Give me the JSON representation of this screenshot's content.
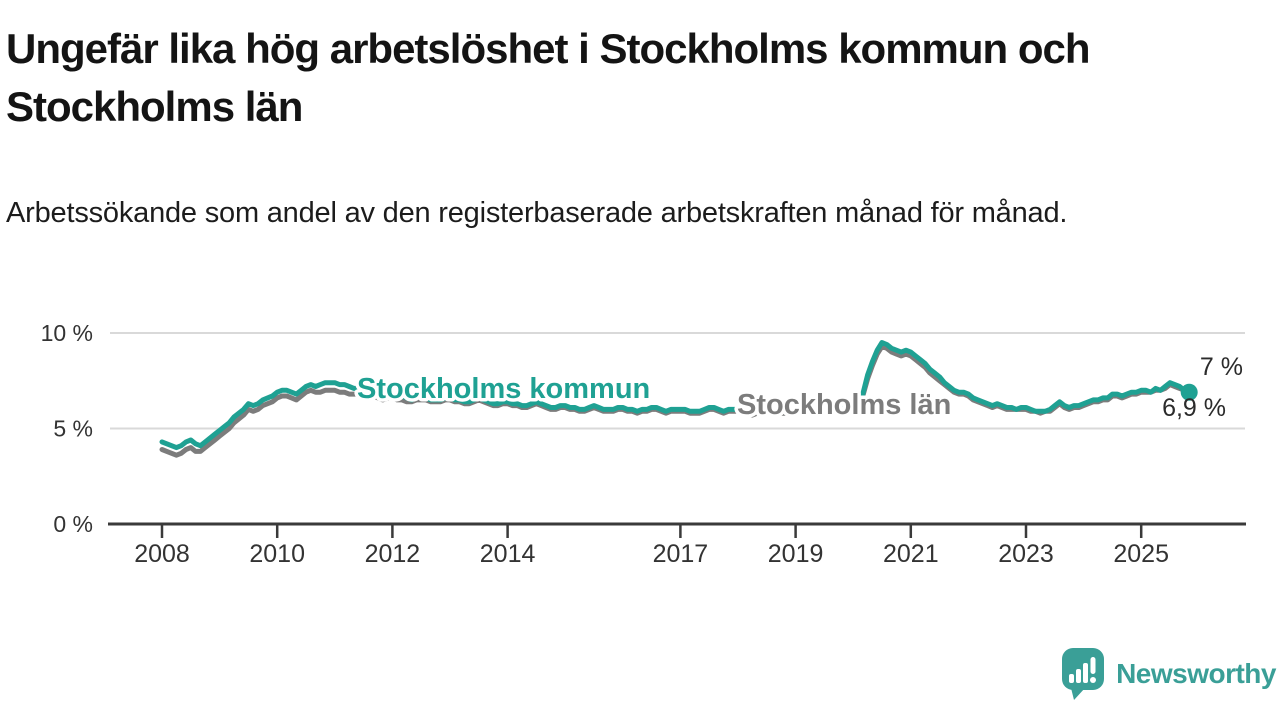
{
  "header": {
    "title": "Ungefär lika hög arbetslöshet i Stockholms kommun och Stockholms län",
    "subtitle": "Arbetssökande som andel av den registerbaserade arbetskraften månad för månad."
  },
  "colors": {
    "kommun_teal": "#1fa193",
    "lan_gray": "#7c7c7c",
    "grid": "#d9d9d9",
    "axis": "#3a3a3a",
    "tick_text": "#333333",
    "end_label_text": "#2b2b2b",
    "brand_teal": "#3a9f97"
  },
  "chart_data": {
    "type": "line",
    "unit": "%",
    "frequency": "monthly",
    "start": {
      "year": 2008,
      "month": 1
    },
    "end": {
      "year": 2025,
      "month": 11
    },
    "ylim": [
      0,
      10.5
    ],
    "grid": "horizontal-only",
    "legend_position": "inline-labels",
    "yticks": [
      {
        "value": 0,
        "label": "0 %"
      },
      {
        "value": 5,
        "label": "5 %"
      },
      {
        "value": 10,
        "label": "10 %"
      }
    ],
    "xticks": [
      {
        "year": 2008,
        "label": "2008"
      },
      {
        "year": 2010,
        "label": "2010"
      },
      {
        "year": 2012,
        "label": "2012"
      },
      {
        "year": 2014,
        "label": "2014"
      },
      {
        "year": 2017,
        "label": "2017"
      },
      {
        "year": 2019,
        "label": "2019"
      },
      {
        "year": 2021,
        "label": "2021"
      },
      {
        "year": 2023,
        "label": "2023"
      },
      {
        "year": 2025,
        "label": "2025"
      }
    ],
    "series": [
      {
        "name": "Stockholms kommun",
        "color": "#1fa193",
        "end_label": "6,9 %",
        "end_marker": true,
        "values": [
          4.3,
          4.2,
          4.1,
          4.0,
          4.1,
          4.3,
          4.4,
          4.2,
          4.1,
          4.3,
          4.5,
          4.7,
          4.9,
          5.1,
          5.3,
          5.6,
          5.8,
          6.0,
          6.3,
          6.2,
          6.3,
          6.5,
          6.6,
          6.7,
          6.9,
          7.0,
          7.0,
          6.9,
          6.8,
          7.0,
          7.2,
          7.3,
          7.2,
          7.3,
          7.4,
          7.4,
          7.4,
          7.3,
          7.3,
          7.2,
          7.1,
          7.1,
          7.2,
          7.1,
          7.0,
          6.9,
          6.8,
          6.9,
          6.8,
          6.7,
          6.7,
          6.6,
          6.5,
          6.6,
          6.7,
          6.6,
          6.5,
          6.5,
          6.5,
          6.6,
          6.6,
          6.5,
          6.5,
          6.4,
          6.4,
          6.5,
          6.6,
          6.5,
          6.4,
          6.3,
          6.3,
          6.4,
          6.4,
          6.3,
          6.3,
          6.2,
          6.2,
          6.3,
          6.4,
          6.3,
          6.2,
          6.1,
          6.1,
          6.2,
          6.2,
          6.1,
          6.1,
          6.0,
          6.0,
          6.1,
          6.2,
          6.1,
          6.0,
          6.0,
          6.0,
          6.1,
          6.1,
          6.0,
          6.0,
          5.9,
          6.0,
          6.0,
          6.1,
          6.1,
          6.0,
          5.9,
          6.0,
          6.0,
          6.0,
          6.0,
          5.9,
          5.9,
          5.9,
          6.0,
          6.1,
          6.1,
          6.0,
          5.9,
          6.0,
          6.0,
          6.0,
          5.9,
          5.9,
          5.8,
          5.9,
          5.9,
          6.0,
          6.0,
          5.9,
          5.9,
          5.9,
          6.0,
          6.0,
          6.0,
          5.9,
          5.9,
          6.0,
          6.1,
          6.2,
          6.1,
          6.1,
          6.1,
          6.2,
          6.2,
          6.3,
          6.4,
          6.8,
          7.8,
          8.5,
          9.1,
          9.5,
          9.4,
          9.2,
          9.1,
          9.0,
          9.1,
          9.0,
          8.8,
          8.6,
          8.4,
          8.1,
          7.9,
          7.7,
          7.4,
          7.2,
          7.0,
          6.9,
          6.9,
          6.8,
          6.6,
          6.5,
          6.4,
          6.3,
          6.2,
          6.3,
          6.2,
          6.1,
          6.1,
          6.0,
          6.1,
          6.1,
          6.0,
          5.9,
          5.9,
          5.9,
          6.0,
          6.2,
          6.4,
          6.2,
          6.1,
          6.2,
          6.2,
          6.3,
          6.4,
          6.5,
          6.5,
          6.6,
          6.6,
          6.8,
          6.8,
          6.7,
          6.8,
          6.9,
          6.9,
          7.0,
          7.0,
          6.9,
          7.1,
          7.0,
          7.2,
          7.4,
          7.3,
          7.2,
          7.0,
          6.9
        ]
      },
      {
        "name": "Stockholms län",
        "color": "#7c7c7c",
        "end_label": "7 %",
        "end_marker": false,
        "values": [
          3.9,
          3.8,
          3.7,
          3.6,
          3.7,
          3.9,
          4.0,
          3.8,
          3.8,
          4.0,
          4.2,
          4.4,
          4.6,
          4.8,
          5.0,
          5.3,
          5.5,
          5.7,
          6.0,
          5.9,
          6.0,
          6.2,
          6.3,
          6.4,
          6.6,
          6.7,
          6.7,
          6.6,
          6.5,
          6.7,
          6.9,
          7.0,
          6.9,
          6.9,
          7.0,
          7.0,
          7.0,
          6.9,
          6.9,
          6.8,
          6.8,
          6.8,
          6.9,
          6.8,
          6.7,
          6.6,
          6.5,
          6.6,
          6.6,
          6.5,
          6.5,
          6.4,
          6.4,
          6.5,
          6.5,
          6.5,
          6.4,
          6.4,
          6.4,
          6.5,
          6.5,
          6.4,
          6.4,
          6.3,
          6.3,
          6.4,
          6.5,
          6.4,
          6.3,
          6.2,
          6.2,
          6.3,
          6.3,
          6.2,
          6.2,
          6.1,
          6.1,
          6.2,
          6.3,
          6.2,
          6.1,
          6.0,
          6.0,
          6.1,
          6.1,
          6.0,
          6.0,
          5.9,
          5.9,
          6.0,
          6.1,
          6.0,
          5.9,
          5.9,
          5.9,
          6.0,
          6.0,
          5.9,
          5.9,
          5.8,
          5.9,
          5.9,
          6.0,
          6.0,
          5.9,
          5.8,
          5.9,
          5.9,
          5.9,
          5.9,
          5.8,
          5.8,
          5.8,
          5.9,
          6.0,
          6.0,
          5.9,
          5.8,
          5.9,
          5.9,
          5.9,
          5.8,
          5.8,
          5.7,
          5.8,
          5.8,
          5.9,
          5.9,
          5.8,
          5.8,
          5.8,
          5.9,
          5.9,
          5.9,
          5.8,
          5.8,
          5.9,
          6.0,
          6.1,
          6.0,
          6.0,
          6.0,
          6.1,
          6.1,
          6.2,
          6.3,
          6.7,
          7.6,
          8.3,
          8.9,
          9.3,
          9.2,
          9.0,
          8.9,
          8.8,
          8.9,
          8.8,
          8.6,
          8.4,
          8.2,
          7.9,
          7.7,
          7.5,
          7.3,
          7.1,
          6.9,
          6.8,
          6.8,
          6.7,
          6.5,
          6.4,
          6.3,
          6.2,
          6.1,
          6.2,
          6.1,
          6.0,
          6.0,
          6.0,
          6.0,
          6.0,
          5.9,
          5.9,
          5.8,
          5.9,
          5.9,
          6.1,
          6.3,
          6.1,
          6.0,
          6.1,
          6.1,
          6.2,
          6.3,
          6.4,
          6.4,
          6.5,
          6.5,
          6.7,
          6.7,
          6.6,
          6.7,
          6.8,
          6.8,
          6.9,
          6.9,
          6.9,
          7.0,
          7.0,
          7.1,
          7.3,
          7.2,
          7.1,
          7.0,
          7.0
        ]
      }
    ]
  },
  "footer": {
    "brand": "Newsworthy"
  }
}
